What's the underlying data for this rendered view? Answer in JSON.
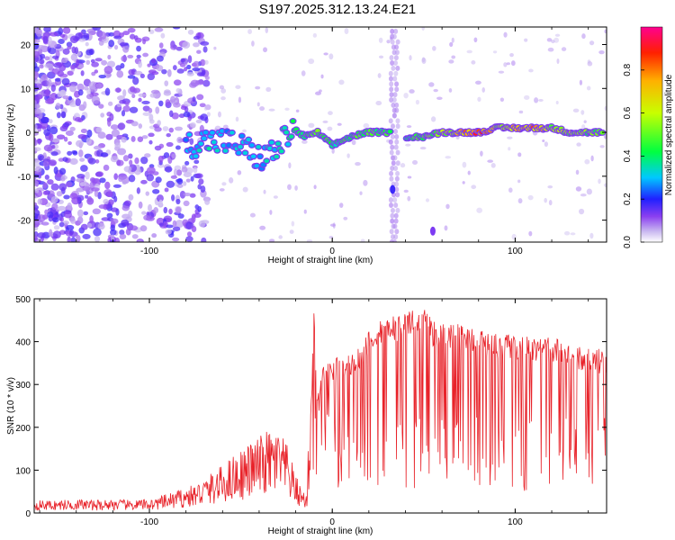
{
  "title": "S197.2025.312.13.24.E21",
  "colors": {
    "line": "#e8232a",
    "frame": "#000000",
    "background": "#ffffff"
  },
  "chart_data": [
    {
      "type": "heatmap",
      "title": "S197.2025.312.13.24.E21",
      "xlabel": "Height of straight line (km)",
      "ylabel": "Frequency (Hz)",
      "xlim": [
        -163,
        150
      ],
      "ylim": [
        -25,
        24
      ],
      "x_ticks": [
        -100,
        0,
        100
      ],
      "x_tick_labels": [
        "-100",
        "0",
        "100"
      ],
      "y_ticks": [
        20,
        10,
        0,
        -10,
        -20
      ],
      "y_tick_labels": [
        "20",
        "10",
        "0",
        "-10",
        "-20"
      ],
      "colorbar": {
        "label": "Normalized spectral amplitude",
        "range": [
          0,
          1
        ],
        "ticks": [
          0.0,
          0.2,
          0.4,
          0.6,
          0.8
        ],
        "tick_labels": [
          "0.0",
          "0.2",
          "0.4",
          "0.6",
          "0.8"
        ]
      },
      "ridge": {
        "description_points_x": [
          -80,
          -70,
          -60,
          -50,
          -40,
          -30,
          -22,
          -15,
          -8,
          0,
          10,
          20,
          30,
          40,
          50,
          60,
          70,
          80,
          90,
          100,
          110,
          120,
          130,
          140,
          148
        ],
        "frequency": [
          -3,
          -2,
          -2,
          -3,
          -6,
          -4,
          1,
          -1,
          0,
          -3,
          -1,
          0,
          0,
          -1,
          -1,
          0,
          0,
          0,
          1,
          1,
          1,
          1,
          0,
          0,
          0
        ],
        "amplitude": [
          0.3,
          0.35,
          0.3,
          0.3,
          0.3,
          0.35,
          0.4,
          0.45,
          0.5,
          0.4,
          0.45,
          0.5,
          0.45,
          0.4,
          0.5,
          0.55,
          0.7,
          0.9,
          0.6,
          0.7,
          0.8,
          0.6,
          0.55,
          0.5,
          0.5
        ]
      }
    },
    {
      "type": "line",
      "xlabel": "Height of straight line (km)",
      "ylabel": "SNR (10 * v/v)",
      "xlim": [
        -163,
        150
      ],
      "ylim": [
        0,
        500
      ],
      "x_ticks": [
        -100,
        0,
        100
      ],
      "x_tick_labels": [
        "-100",
        "0",
        "100"
      ],
      "y_ticks": [
        0,
        100,
        200,
        300,
        400,
        500
      ],
      "y_tick_labels": [
        "0",
        "100",
        "200",
        "300",
        "400",
        "500"
      ],
      "series": [
        {
          "name": "SNR",
          "x": [
            -163,
            -150,
            -140,
            -130,
            -120,
            -110,
            -100,
            -95,
            -90,
            -85,
            -80,
            -75,
            -70,
            -65,
            -60,
            -55,
            -50,
            -45,
            -40,
            -35,
            -30,
            -25,
            -20,
            -17,
            -14,
            -12,
            -10,
            -8,
            -5,
            0,
            5,
            10,
            15,
            20,
            25,
            30,
            35,
            40,
            45,
            50,
            55,
            60,
            70,
            80,
            90,
            100,
            110,
            120,
            130,
            140,
            150
          ],
          "values": [
            20,
            20,
            22,
            20,
            22,
            20,
            22,
            25,
            30,
            35,
            40,
            45,
            55,
            65,
            75,
            90,
            100,
            110,
            120,
            130,
            130,
            110,
            60,
            40,
            30,
            200,
            450,
            240,
            320,
            330,
            340,
            350,
            360,
            400,
            420,
            440,
            430,
            450,
            440,
            460,
            420,
            420,
            410,
            400,
            390,
            390,
            380,
            380,
            370,
            360,
            350
          ]
        }
      ]
    }
  ]
}
